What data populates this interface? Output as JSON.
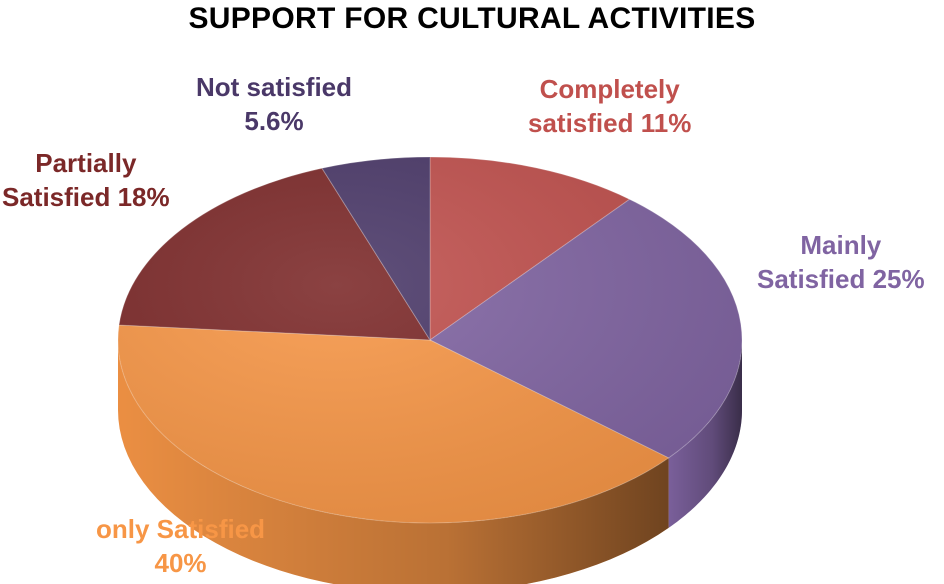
{
  "chart_data": {
    "type": "pie",
    "title": "SUPPORT FOR CULTURAL ACTIVITIES",
    "three_d": true,
    "slices": [
      {
        "label_lines": [
          "Completely",
          "satisfied 11%"
        ],
        "value": 11,
        "color": "#c0504d",
        "label_color": "#c0504d"
      },
      {
        "label_lines": [
          "Mainly",
          "Satisfied 25%"
        ],
        "value": 25,
        "color": "#8064a2",
        "label_color": "#8064a2"
      },
      {
        "label_lines": [
          "only Satisfied",
          "40%"
        ],
        "value": 40,
        "color": "#f79646",
        "label_color": "#f79646"
      },
      {
        "label_lines": [
          "Partially",
          "Satisfied 18%"
        ],
        "value": 18,
        "color": "#7b2828",
        "label_color": "#7b2828"
      },
      {
        "label_lines": [
          "Not satisfied",
          "5.6%"
        ],
        "value": 5.6,
        "color": "#4a3868",
        "label_color": "#4a3868"
      }
    ]
  }
}
